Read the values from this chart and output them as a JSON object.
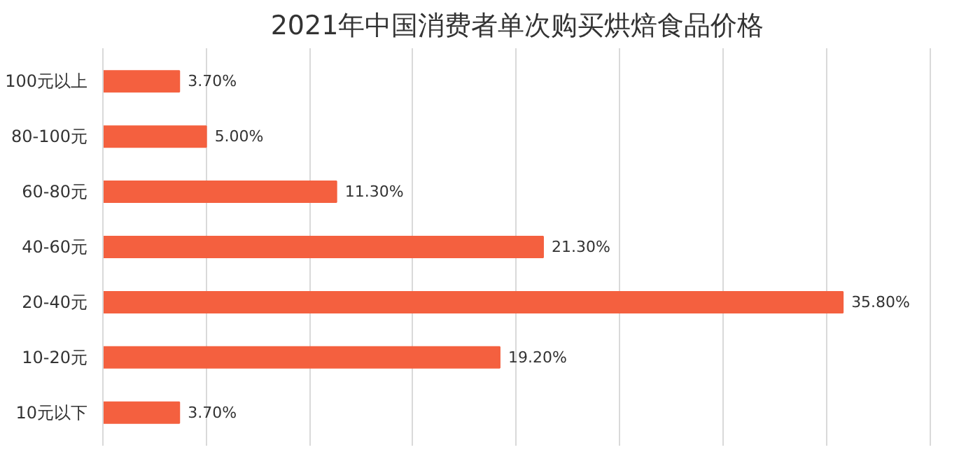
{
  "chart_data": {
    "type": "bar",
    "orientation": "horizontal",
    "title": "2021年中国消费者单次购买烘焙食品价格",
    "categories": [
      "100元以上",
      "80-100元",
      "60-80元",
      "40-60元",
      "20-40元",
      "10-20元",
      "10元以下"
    ],
    "values": [
      3.7,
      5.0,
      11.3,
      21.3,
      35.8,
      19.2,
      3.7
    ],
    "value_labels": [
      "3.70%",
      "5.00%",
      "11.30%",
      "21.30%",
      "35.80%",
      "19.20%",
      "3.70%"
    ],
    "color": "#f4603f",
    "grid": "x",
    "tick_labels": "y"
  }
}
